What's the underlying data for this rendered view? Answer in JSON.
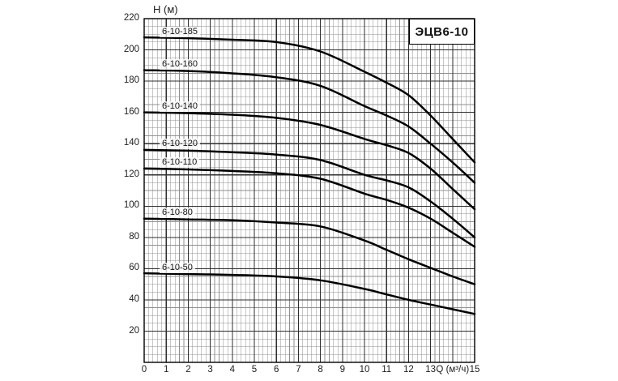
{
  "page": {
    "background": "#ffffff"
  },
  "chart_data": {
    "type": "line",
    "title": "ЭЦВ6-10",
    "ylabel": "Н (м)",
    "xlabel": "Q (м³/ч)",
    "xlim": [
      0,
      15
    ],
    "ylim": [
      0,
      220
    ],
    "grid": true,
    "x_major_step": 1,
    "x_minor_step": 0.2,
    "y_major_step": 20,
    "y_minor_step": 5,
    "y_ticks": [
      220,
      200,
      180,
      160,
      140,
      120,
      100,
      80,
      60,
      40,
      20
    ],
    "x_tick_values": [
      0,
      1,
      2,
      3,
      4,
      5,
      6,
      7,
      8,
      9,
      10,
      11,
      12,
      13,
      14,
      15
    ],
    "x_tick_labels": [
      "0",
      "1",
      "2",
      "3",
      "4",
      "5",
      "6",
      "7",
      "8",
      "9",
      "10",
      "11",
      "12",
      "13",
      "Q (м³/ч)",
      "15"
    ],
    "legend_position": "labels-on-curves",
    "series_x": [
      0,
      2,
      4,
      6,
      8,
      10,
      11,
      12,
      13,
      14,
      15
    ],
    "series": [
      {
        "name": "6-10-185",
        "values": [
          208,
          207.5,
          206.5,
          205,
          199,
          186,
          179,
          171,
          158,
          143,
          128
        ]
      },
      {
        "name": "6-10-160",
        "values": [
          187,
          186.5,
          185,
          182.5,
          177,
          164,
          158,
          151,
          140,
          128,
          115
        ]
      },
      {
        "name": "6-10-140",
        "values": [
          160,
          159.5,
          158.5,
          156.5,
          152,
          143,
          139,
          134,
          124,
          111,
          98
        ]
      },
      {
        "name": "6-10-120",
        "values": [
          136,
          135.5,
          134.5,
          133,
          129.5,
          120,
          116.5,
          112,
          103,
          92,
          80
        ]
      },
      {
        "name": "6-10-110",
        "values": [
          124,
          123.5,
          122.5,
          121,
          117.5,
          108,
          104,
          99,
          92,
          83,
          74
        ]
      },
      {
        "name": "6-10-80",
        "values": [
          92,
          91.5,
          91,
          89.5,
          87,
          78,
          72,
          66,
          60.5,
          55,
          50
        ]
      },
      {
        "name": "6-10-50",
        "values": [
          57,
          56.5,
          56,
          55,
          52.5,
          47,
          43.5,
          40,
          37,
          34,
          31
        ]
      }
    ],
    "colors": {
      "curve": "#000000",
      "grid_minor": "#8f8f8f",
      "grid_major": "#2e2e2e",
      "plot_border": "#000000",
      "text": "#1d1d1d",
      "background": "#ffffff"
    }
  }
}
